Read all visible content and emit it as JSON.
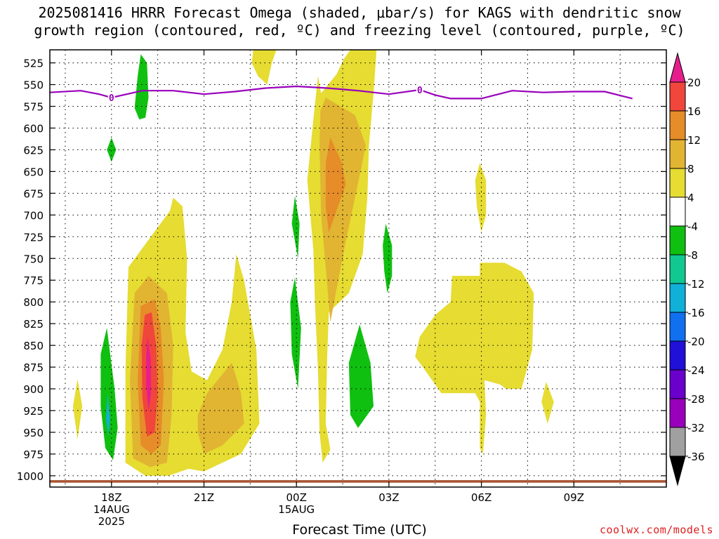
{
  "title": {
    "line1": "2025081416 HRRR Forecast Omega (shaded, μbar/s) for KAGS with dendritic snow",
    "line2": "growth region (contoured, red, ºC) and freezing level (contoured, purple, ºC)"
  },
  "xlabel": "Forecast Time (UTC)",
  "credit": "coolwx.com/models",
  "chart_data": {
    "type": "heatmap",
    "title": "2025081416 HRRR Forecast Omega (shaded, μbar/s) for KAGS with dendritic snow growth region (contoured, red, ºC) and freezing level (contoured, purple, ºC)",
    "xlabel": "Forecast Time (UTC)",
    "ylabel": "",
    "x_axis": {
      "unit": "hour UTC, 14AUG 2025 16Z to 15AUG 2025 12Z",
      "range": [
        16,
        36
      ],
      "ticks": [
        {
          "x": 18,
          "label": "18Z",
          "sub1": "14AUG",
          "sub2": "2025"
        },
        {
          "x": 21,
          "label": "21Z",
          "sub1": "",
          "sub2": ""
        },
        {
          "x": 24,
          "label": "00Z",
          "sub1": "15AUG",
          "sub2": ""
        },
        {
          "x": 27,
          "label": "03Z",
          "sub1": "",
          "sub2": ""
        },
        {
          "x": 30,
          "label": "06Z",
          "sub1": "",
          "sub2": ""
        },
        {
          "x": 33,
          "label": "09Z",
          "sub1": "",
          "sub2": ""
        }
      ]
    },
    "y_axis": {
      "unit": "pressure (mb)",
      "range": [
        1013,
        510
      ],
      "ticks": [
        525,
        550,
        575,
        600,
        625,
        650,
        675,
        700,
        725,
        750,
        775,
        800,
        825,
        850,
        875,
        900,
        925,
        950,
        975,
        1000
      ]
    },
    "grid": true,
    "colorbar": {
      "levels": [
        -36,
        -32,
        -28,
        -24,
        -20,
        -16,
        -12,
        -8,
        -4,
        4,
        8,
        12,
        16,
        20
      ],
      "colors": [
        "#000000",
        "#a0a0a0",
        "#9900bb",
        "#6a00cc",
        "#2010d8",
        "#1070f0",
        "#10b0d8",
        "#10c890",
        "#10c010",
        "#ffffff",
        "#e6dc32",
        "#e1b432",
        "#e68c28",
        "#f0463c",
        "#e61e8c"
      ],
      "placement": "right"
    },
    "omega_regions": [
      {
        "color": "#10c010",
        "points": [
          [
            18.95,
            515
          ],
          [
            19.15,
            525
          ],
          [
            19.2,
            565
          ],
          [
            19.1,
            588
          ],
          [
            18.9,
            590
          ],
          [
            18.75,
            577
          ],
          [
            18.85,
            540
          ]
        ]
      },
      {
        "color": "#10c010",
        "points": [
          [
            18,
            611
          ],
          [
            18.15,
            625
          ],
          [
            18,
            639
          ],
          [
            17.85,
            625
          ]
        ]
      },
      {
        "color": "#e6dc32",
        "points": [
          [
            18.55,
            760
          ],
          [
            19.9,
            695
          ],
          [
            20,
            680
          ],
          [
            20.3,
            690
          ],
          [
            20.45,
            750
          ],
          [
            20.4,
            835
          ],
          [
            20.6,
            880
          ],
          [
            21.1,
            890
          ],
          [
            21.6,
            855
          ],
          [
            21.9,
            800
          ],
          [
            22.05,
            745
          ],
          [
            22.3,
            775
          ],
          [
            22.7,
            855
          ],
          [
            22.8,
            940
          ],
          [
            22.2,
            975
          ],
          [
            21.6,
            985
          ],
          [
            21,
            995
          ],
          [
            20.5,
            992
          ],
          [
            19.85,
            1000
          ],
          [
            19.1,
            1000
          ],
          [
            18.45,
            985
          ],
          [
            18.45,
            880
          ]
        ]
      },
      {
        "color": "#e1b432",
        "points": [
          [
            18.75,
            790
          ],
          [
            19.2,
            770
          ],
          [
            19.8,
            790
          ],
          [
            20,
            850
          ],
          [
            19.95,
            930
          ],
          [
            19.8,
            985
          ],
          [
            19.25,
            990
          ],
          [
            18.7,
            980
          ],
          [
            18.6,
            890
          ]
        ]
      },
      {
        "color": "#e68c28",
        "points": [
          [
            18.95,
            805
          ],
          [
            19.4,
            797
          ],
          [
            19.6,
            830
          ],
          [
            19.7,
            890
          ],
          [
            19.6,
            965
          ],
          [
            19.3,
            975
          ],
          [
            18.95,
            965
          ],
          [
            18.85,
            890
          ]
        ]
      },
      {
        "color": "#f0463c",
        "points": [
          [
            19.08,
            815
          ],
          [
            19.3,
            812
          ],
          [
            19.45,
            850
          ],
          [
            19.5,
            905
          ],
          [
            19.4,
            950
          ],
          [
            19.15,
            955
          ],
          [
            19,
            910
          ],
          [
            18.98,
            850
          ]
        ]
      },
      {
        "color": "#e61e8c",
        "points": [
          [
            19.17,
            840
          ],
          [
            19.27,
            865
          ],
          [
            19.28,
            905
          ],
          [
            19.2,
            925
          ],
          [
            19.12,
            895
          ],
          [
            19.13,
            860
          ]
        ]
      },
      {
        "color": "#e6dc32",
        "points": [
          [
            16.9,
            889
          ],
          [
            17.05,
            920
          ],
          [
            16.9,
            958
          ],
          [
            16.75,
            920
          ]
        ]
      },
      {
        "color": "#10c010",
        "points": [
          [
            17.85,
            830
          ],
          [
            18.1,
            900
          ],
          [
            18.2,
            945
          ],
          [
            18.05,
            982
          ],
          [
            17.8,
            968
          ],
          [
            17.65,
            920
          ],
          [
            17.65,
            860
          ]
        ]
      },
      {
        "color": "#10b0d8",
        "points": [
          [
            17.88,
            905
          ],
          [
            17.95,
            935
          ],
          [
            17.9,
            955
          ],
          [
            17.82,
            935
          ]
        ]
      },
      {
        "color": "#e1b432",
        "points": [
          [
            21.1,
            905
          ],
          [
            21.9,
            870
          ],
          [
            22.2,
            905
          ],
          [
            22.3,
            940
          ],
          [
            21.6,
            965
          ],
          [
            21,
            975
          ],
          [
            20.8,
            950
          ],
          [
            20.8,
            930
          ]
        ]
      },
      {
        "color": "#e6dc32",
        "points": [
          [
            22.6,
            510
          ],
          [
            23.35,
            510
          ],
          [
            23.2,
            525
          ],
          [
            23.05,
            550
          ],
          [
            22.75,
            540
          ],
          [
            22.55,
            525
          ]
        ]
      },
      {
        "color": "#10c010",
        "points": [
          [
            23.95,
            678
          ],
          [
            24.1,
            710
          ],
          [
            24.05,
            750
          ],
          [
            23.85,
            710
          ]
        ]
      },
      {
        "color": "#10c010",
        "points": [
          [
            23.95,
            772
          ],
          [
            24.15,
            830
          ],
          [
            24.05,
            900
          ],
          [
            23.85,
            860
          ],
          [
            23.8,
            800
          ]
        ]
      },
      {
        "color": "#e6dc32",
        "points": [
          [
            25.75,
            510
          ],
          [
            26.6,
            510
          ],
          [
            26.5,
            560
          ],
          [
            26.35,
            620
          ],
          [
            26.3,
            680
          ],
          [
            26.15,
            745
          ],
          [
            25.7,
            790
          ],
          [
            25.05,
            812
          ],
          [
            25,
            860
          ],
          [
            24.95,
            940
          ],
          [
            25.1,
            970
          ],
          [
            24.85,
            985
          ],
          [
            24.75,
            950
          ],
          [
            24.7,
            880
          ],
          [
            24.6,
            800
          ],
          [
            24.55,
            740
          ],
          [
            24.35,
            660
          ],
          [
            24.55,
            590
          ],
          [
            24.7,
            540
          ],
          [
            24.8,
            560
          ],
          [
            25.3,
            538
          ],
          [
            25.55,
            520
          ]
        ]
      },
      {
        "color": "#e1b432",
        "points": [
          [
            24.95,
            565
          ],
          [
            25.9,
            585
          ],
          [
            26.25,
            620
          ],
          [
            25.9,
            680
          ],
          [
            25.6,
            730
          ],
          [
            25.1,
            823
          ],
          [
            24.95,
            760
          ],
          [
            24.8,
            700
          ],
          [
            24.75,
            620
          ],
          [
            24.78,
            580
          ]
        ]
      },
      {
        "color": "#e68c28",
        "points": [
          [
            25.1,
            611
          ],
          [
            25.45,
            638
          ],
          [
            25.6,
            665
          ],
          [
            25.3,
            695
          ],
          [
            25.05,
            720
          ],
          [
            24.95,
            690
          ],
          [
            24.95,
            640
          ]
        ]
      },
      {
        "color": "#10c010",
        "points": [
          [
            26.9,
            710
          ],
          [
            27.1,
            735
          ],
          [
            27.1,
            770
          ],
          [
            26.95,
            790
          ],
          [
            26.85,
            765
          ],
          [
            26.8,
            735
          ]
        ]
      },
      {
        "color": "#10c010",
        "points": [
          [
            26.05,
            826
          ],
          [
            26.4,
            870
          ],
          [
            26.5,
            920
          ],
          [
            26,
            945
          ],
          [
            25.75,
            930
          ],
          [
            25.7,
            870
          ]
        ]
      },
      {
        "color": "#e6dc32",
        "points": [
          [
            29.95,
            640
          ],
          [
            30.15,
            660
          ],
          [
            30.15,
            700
          ],
          [
            30,
            720
          ],
          [
            29.85,
            690
          ],
          [
            29.8,
            660
          ]
        ]
      },
      {
        "color": "#e6dc32",
        "points": [
          [
            30,
            755
          ],
          [
            30.75,
            755
          ],
          [
            31.3,
            765
          ],
          [
            31.7,
            790
          ],
          [
            31.65,
            855
          ],
          [
            31.3,
            900
          ],
          [
            30.8,
            900
          ],
          [
            30.6,
            895
          ],
          [
            30.1,
            890
          ],
          [
            30.15,
            930
          ],
          [
            30.05,
            975
          ],
          [
            29.95,
            968
          ],
          [
            29.95,
            915
          ],
          [
            29.8,
            905
          ],
          [
            28.7,
            905
          ],
          [
            28.1,
            875
          ],
          [
            27.85,
            863
          ],
          [
            28,
            840
          ],
          [
            28.5,
            815
          ],
          [
            29,
            800
          ],
          [
            29.05,
            770
          ],
          [
            29.95,
            770
          ],
          [
            29.95,
            755
          ]
        ]
      },
      {
        "color": "#e6dc32",
        "points": [
          [
            32.1,
            892
          ],
          [
            32.35,
            915
          ],
          [
            32.15,
            940
          ],
          [
            31.95,
            915
          ]
        ]
      }
    ],
    "ground_line": {
      "color": "#aa5533",
      "pressure_start": 1005,
      "pressure_end": 1008
    },
    "freezing_level": {
      "color": "#9900bb",
      "label": "0",
      "label_x": [
        18,
        28
      ],
      "points": [
        [
          16,
          559
        ],
        [
          17,
          557
        ],
        [
          17.6,
          561
        ],
        [
          18,
          565
        ],
        [
          19,
          557
        ],
        [
          20,
          557
        ],
        [
          21,
          561
        ],
        [
          22,
          558
        ],
        [
          23,
          554
        ],
        [
          24,
          552
        ],
        [
          25,
          554
        ],
        [
          26,
          557
        ],
        [
          27,
          561
        ],
        [
          28,
          556
        ],
        [
          28.5,
          562
        ],
        [
          29,
          566
        ],
        [
          30,
          566
        ],
        [
          31,
          557
        ],
        [
          32,
          559
        ],
        [
          33,
          558
        ],
        [
          34,
          558
        ],
        [
          34.9,
          566
        ]
      ]
    }
  }
}
